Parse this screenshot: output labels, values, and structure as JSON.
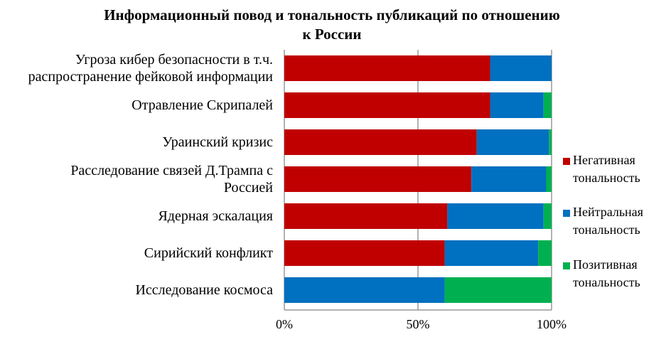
{
  "chart_data": {
    "type": "bar",
    "orientation": "horizontal",
    "stacked": "percent",
    "title_lines": [
      "Информационный повод и тональность публикаций по отношению",
      "к России"
    ],
    "categories": [
      [
        "Угроза кибер безопасности в т.ч.",
        "распространение фейковой информации"
      ],
      [
        "Отравление Скрипалей"
      ],
      [
        "Ураинский кризис"
      ],
      [
        "Расследование связей Д.Трампа с",
        "Россией"
      ],
      [
        "Ядерная эскалация"
      ],
      [
        "Сирийский конфликт"
      ],
      [
        "Исследование космоса"
      ]
    ],
    "series": [
      {
        "name_lines": [
          "Негативная",
          "тональность"
        ],
        "color": "#C00000",
        "values": [
          77,
          77,
          72,
          70,
          61,
          60,
          0
        ]
      },
      {
        "name_lines": [
          "Нейтральная",
          "тональность"
        ],
        "color": "#0070C0",
        "values": [
          23,
          20,
          27,
          28,
          36,
          35,
          60
        ]
      },
      {
        "name_lines": [
          "Позитивная",
          "тональность"
        ],
        "color": "#00B050",
        "values": [
          0,
          3,
          1,
          2,
          3,
          5,
          40
        ]
      }
    ],
    "x_ticks": [
      "0%",
      "50%",
      "100%"
    ],
    "xlim": [
      0,
      100
    ],
    "grid": true,
    "legend": "right"
  }
}
